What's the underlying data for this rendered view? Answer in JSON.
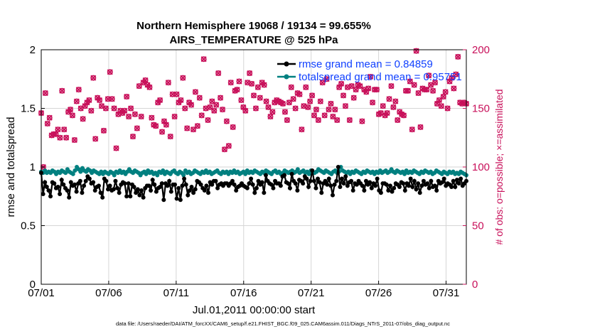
{
  "chart_data": {
    "type": "line",
    "title": [
      "Northern Hemisphere 19068 / 19134 = 99.655%",
      "AIRS_TEMPERATURE @ 525 hPa"
    ],
    "xlabel": "Jul.01,2011 00:00:00 start",
    "ylabel_left": "rmse and totalspread",
    "ylabel_right": "# of obs: o=possible; ×=assimilated",
    "xlim": [
      0,
      31.5
    ],
    "ylim_left": [
      0,
      2
    ],
    "ylim_right": [
      0,
      200
    ],
    "x_ticks": [
      0,
      5,
      10,
      15,
      20,
      25,
      30
    ],
    "x_tick_labels": [
      "07/01",
      "07/06",
      "07/11",
      "07/16",
      "07/21",
      "07/26",
      "07/31"
    ],
    "y_ticks_left": [
      0,
      0.5,
      1,
      1.5,
      2
    ],
    "y_tick_labels_left": [
      "0",
      "0.5",
      "1",
      "1.5",
      "2"
    ],
    "y_ticks_right": [
      0,
      50,
      100,
      150,
      200
    ],
    "y_tick_labels_right": [
      "0",
      "50",
      "100",
      "150",
      "200"
    ],
    "grid": true,
    "legend_location": "top-right",
    "colors": {
      "rmse": "#000000",
      "spread": "#008080",
      "obs": "#c8105a",
      "legend_text": "#1040ff"
    },
    "series": [
      {
        "name": "rmse grand mean = 0.84859",
        "axis": "left",
        "marker": "dot",
        "values": [
          0.95,
          0.77,
          0.87,
          0.83,
          0.8,
          0.75,
          0.87,
          0.86,
          0.82,
          0.83,
          0.77,
          0.89,
          0.85,
          0.82,
          0.8,
          0.74,
          0.87,
          0.84,
          0.85,
          0.79,
          0.86,
          0.88,
          0.78,
          0.84,
          0.88,
          0.92,
          0.9,
          0.86,
          0.87,
          0.8,
          0.83,
          0.84,
          0.78,
          0.74,
          0.9,
          0.88,
          0.81,
          0.84,
          0.8,
          0.81,
          0.88,
          0.82,
          0.78,
          0.85,
          0.87,
          0.86,
          0.75,
          0.86,
          0.75,
          0.85,
          0.83,
          0.78,
          0.81,
          0.76,
          0.8,
          0.74,
          0.82,
          0.84,
          0.84,
          0.8,
          0.89,
          0.85,
          0.79,
          0.82,
          0.83,
          0.86,
          0.72,
          0.86,
          0.84,
          0.88,
          0.79,
          0.85,
          0.85,
          0.73,
          0.82,
          0.72,
          0.84,
          0.9,
          0.85,
          0.76,
          0.8,
          0.83,
          0.78,
          0.81,
          0.88,
          0.87,
          0.85,
          0.82,
          0.8,
          0.84,
          0.78,
          0.87,
          0.85,
          0.88,
          0.88,
          0.82,
          0.85,
          0.86,
          0.84,
          0.86,
          0.86,
          0.84,
          0.86,
          0.88,
          0.85,
          0.8,
          0.83,
          0.84,
          0.86,
          0.84,
          0.83,
          0.82,
          0.86,
          0.9,
          0.85,
          0.78,
          0.82,
          0.88,
          0.85,
          0.87,
          0.78,
          0.93,
          0.88,
          0.86,
          0.85,
          0.82,
          0.88,
          0.86,
          0.86,
          0.84,
          0.92,
          0.93,
          0.87,
          0.86,
          0.82,
          0.94,
          0.88,
          0.86,
          0.8,
          0.89,
          0.88,
          0.86,
          0.92,
          0.9,
          0.83,
          0.88,
          0.97,
          0.88,
          0.82,
          0.9,
          0.87,
          0.78,
          0.86,
          0.88,
          0.85,
          0.9,
          0.84,
          0.76,
          0.85,
          0.88,
          1.0,
          0.83,
          0.9,
          0.86,
          0.92,
          0.84,
          0.87,
          0.88,
          0.8,
          0.86,
          0.85,
          0.88,
          0.86,
          0.84,
          0.8,
          0.88,
          0.85,
          0.87,
          0.82,
          0.86,
          0.84,
          0.9,
          0.8,
          0.78,
          0.86,
          0.86,
          0.85,
          0.8,
          0.84,
          0.79,
          0.82,
          0.86,
          0.85,
          0.83,
          0.87,
          0.86,
          0.8,
          0.86,
          0.84,
          0.9,
          0.83,
          0.88,
          0.81,
          0.86,
          0.78,
          0.84,
          0.88,
          0.85,
          0.86,
          0.82,
          0.88,
          0.83,
          0.84,
          0.8,
          0.88,
          0.86,
          0.87,
          0.9,
          0.84,
          0.86,
          0.85,
          0.83,
          0.88,
          0.83,
          0.89,
          0.86,
          0.9,
          0.84,
          0.86,
          0.88
        ]
      },
      {
        "name": "totalspread grand mean = 0.95751",
        "axis": "left",
        "marker": "dot",
        "values": [
          0.96,
          0.95,
          0.97,
          0.95,
          0.96,
          0.95,
          0.97,
          0.96,
          0.94,
          0.96,
          0.95,
          0.97,
          0.96,
          0.95,
          0.98,
          0.96,
          0.95,
          0.94,
          0.97,
          1.0,
          0.98,
          0.96,
          0.99,
          0.97,
          0.96,
          0.98,
          0.97,
          0.95,
          0.97,
          0.96,
          0.95,
          0.94,
          0.96,
          0.94,
          0.96,
          0.95,
          0.94,
          0.96,
          0.95,
          0.93,
          0.96,
          0.95,
          0.97,
          0.95,
          0.96,
          0.94,
          0.96,
          0.98,
          0.96,
          0.95,
          0.97,
          0.96,
          0.95,
          0.93,
          0.95,
          0.96,
          0.94,
          0.97,
          0.95,
          0.96,
          0.94,
          0.95,
          0.93,
          0.96,
          0.95,
          0.97,
          0.94,
          0.96,
          0.95,
          0.94,
          0.96,
          0.97,
          0.95,
          0.94,
          0.96,
          0.95,
          0.93,
          0.97,
          0.95,
          0.96,
          0.94,
          0.95,
          0.97,
          0.96,
          0.95,
          0.94,
          0.96,
          0.95,
          0.97,
          0.95,
          0.96,
          0.94,
          0.95,
          0.96,
          0.97,
          0.95,
          0.94,
          0.96,
          0.95,
          0.96,
          0.94,
          0.96,
          0.95,
          0.97,
          0.95,
          0.96,
          0.94,
          0.95,
          0.96,
          0.94,
          0.97,
          0.95,
          0.96,
          0.95,
          0.97,
          0.96,
          0.95,
          0.94,
          0.96,
          0.95,
          0.97,
          0.96,
          0.95,
          0.94,
          0.96,
          0.97,
          0.95,
          0.96,
          0.94,
          0.95,
          0.97,
          0.96,
          0.95,
          0.96,
          0.97,
          0.95,
          0.96,
          0.98,
          0.95,
          0.96,
          0.97,
          0.95,
          0.96,
          0.94,
          0.97,
          0.96,
          0.95,
          0.96,
          0.98,
          0.97,
          0.96,
          0.95,
          0.97,
          0.96,
          0.95,
          0.94,
          0.96,
          0.97,
          0.95,
          0.96,
          1.0,
          0.97,
          0.96,
          0.95,
          0.96,
          0.94,
          0.96,
          0.95,
          0.97,
          0.96,
          0.95,
          0.94,
          0.96,
          0.95,
          0.97,
          0.96,
          0.95,
          0.96,
          0.94,
          0.96,
          0.95,
          0.97,
          0.95,
          0.96,
          0.97,
          0.95,
          0.96,
          0.98,
          0.96,
          0.95,
          0.97,
          0.96,
          0.95,
          0.96,
          0.94,
          0.97,
          0.95,
          0.96,
          0.95,
          0.97,
          0.96,
          0.95,
          0.94,
          0.96,
          0.95,
          0.97,
          0.96,
          0.95,
          0.96,
          0.94,
          0.95,
          0.97,
          0.96,
          0.95,
          0.94,
          0.96,
          0.95,
          0.94,
          0.96,
          0.95,
          0.96,
          0.94,
          0.95,
          0.94,
          0.96,
          0.95,
          0.94,
          0.93
        ]
      },
      {
        "name": "obs possible",
        "axis": "right",
        "marker": "o",
        "values": [
          146,
          100,
          163,
          137,
          142,
          127,
          128,
          128,
          132,
          125,
          165,
          132,
          125,
          147,
          149,
          144,
          123,
          156,
          166,
          150,
          141,
          152,
          155,
          157,
          148,
          176,
          124,
          159,
          157,
          152,
          131,
          150,
          158,
          181,
          158,
          150,
          116,
          145,
          148,
          146,
          148,
          160,
          143,
          150,
          126,
          145,
          133,
          169,
          143,
          172,
          174,
          170,
          168,
          142,
          136,
          135,
          155,
          157,
          130,
          139,
          136,
          172,
          126,
          162,
          143,
          162,
          155,
          157,
          176,
          150,
          133,
          155,
          153,
          132,
          164,
          135,
          159,
          144,
          192,
          150,
          140,
          151,
          156,
          148,
          153,
          180,
          159,
          149,
          115,
          139,
          118,
          172,
          134,
          165,
          166,
          173,
          157,
          151,
          148,
          172,
          180,
          171,
          161,
          150,
          168,
          159,
          172,
          170,
          156,
          151,
          143,
          147,
          155,
          157,
          156,
          155,
          154,
          147,
          140,
          155,
          168,
          158,
          150,
          163,
          162,
          132,
          152,
          168,
          151,
          156,
          161,
          144,
          149,
          140,
          156,
          172,
          144,
          175,
          149,
          154,
          143,
          149,
          140,
          168,
          171,
          161,
          152,
          168,
          140,
          169,
          159,
          166,
          170,
          169,
          139,
          166,
          164,
          167,
          177,
          155,
          166,
          166,
          145,
          146,
          152,
          144,
          146,
          158,
          169,
          151,
          156,
          140,
          147,
          145,
          144,
          165,
          165,
          173,
          132,
          170,
          199,
          163,
          134,
          167,
          166,
          166,
          178,
          170,
          165,
          172,
          154,
          157,
          152,
          160,
          164,
          150,
          173,
          176,
          167,
          179,
          194,
          155,
          154,
          155,
          154
        ]
      },
      {
        "name": "obs assimilated",
        "axis": "right",
        "marker": "x",
        "values": [
          146,
          100,
          163,
          137,
          142,
          127,
          128,
          128,
          132,
          125,
          165,
          132,
          125,
          147,
          149,
          144,
          123,
          156,
          166,
          150,
          141,
          152,
          155,
          157,
          148,
          176,
          124,
          159,
          157,
          152,
          131,
          150,
          158,
          181,
          158,
          150,
          116,
          145,
          148,
          146,
          148,
          160,
          143,
          150,
          126,
          145,
          133,
          169,
          143,
          172,
          174,
          170,
          168,
          142,
          136,
          135,
          155,
          157,
          130,
          139,
          136,
          172,
          126,
          162,
          143,
          162,
          155,
          157,
          176,
          150,
          133,
          155,
          153,
          132,
          164,
          135,
          159,
          144,
          192,
          150,
          140,
          151,
          156,
          148,
          153,
          180,
          159,
          149,
          115,
          139,
          118,
          172,
          134,
          165,
          166,
          173,
          157,
          151,
          148,
          172,
          180,
          171,
          161,
          150,
          168,
          159,
          172,
          170,
          156,
          151,
          143,
          147,
          155,
          157,
          156,
          155,
          154,
          147,
          140,
          155,
          168,
          158,
          150,
          163,
          162,
          132,
          152,
          168,
          151,
          156,
          161,
          144,
          149,
          140,
          156,
          172,
          144,
          175,
          149,
          154,
          143,
          149,
          140,
          168,
          171,
          161,
          152,
          168,
          140,
          169,
          159,
          166,
          170,
          169,
          139,
          166,
          164,
          167,
          177,
          155,
          166,
          166,
          145,
          146,
          152,
          144,
          146,
          158,
          169,
          151,
          156,
          140,
          147,
          145,
          144,
          165,
          165,
          173,
          132,
          170,
          199,
          163,
          134,
          167,
          166,
          166,
          178,
          170,
          165,
          172,
          154,
          157,
          152,
          160,
          164,
          150,
          173,
          176,
          167,
          179,
          194,
          155,
          154,
          155,
          154
        ]
      }
    ],
    "footnote": "data file: /Users/raeder/DAI/ATM_forcXX/CAM6_setup/f.e21.FHIST_BGC.f09_025.CAM6assim.011/Diags_NTrS_2011-07/obs_diag_output.nc"
  }
}
